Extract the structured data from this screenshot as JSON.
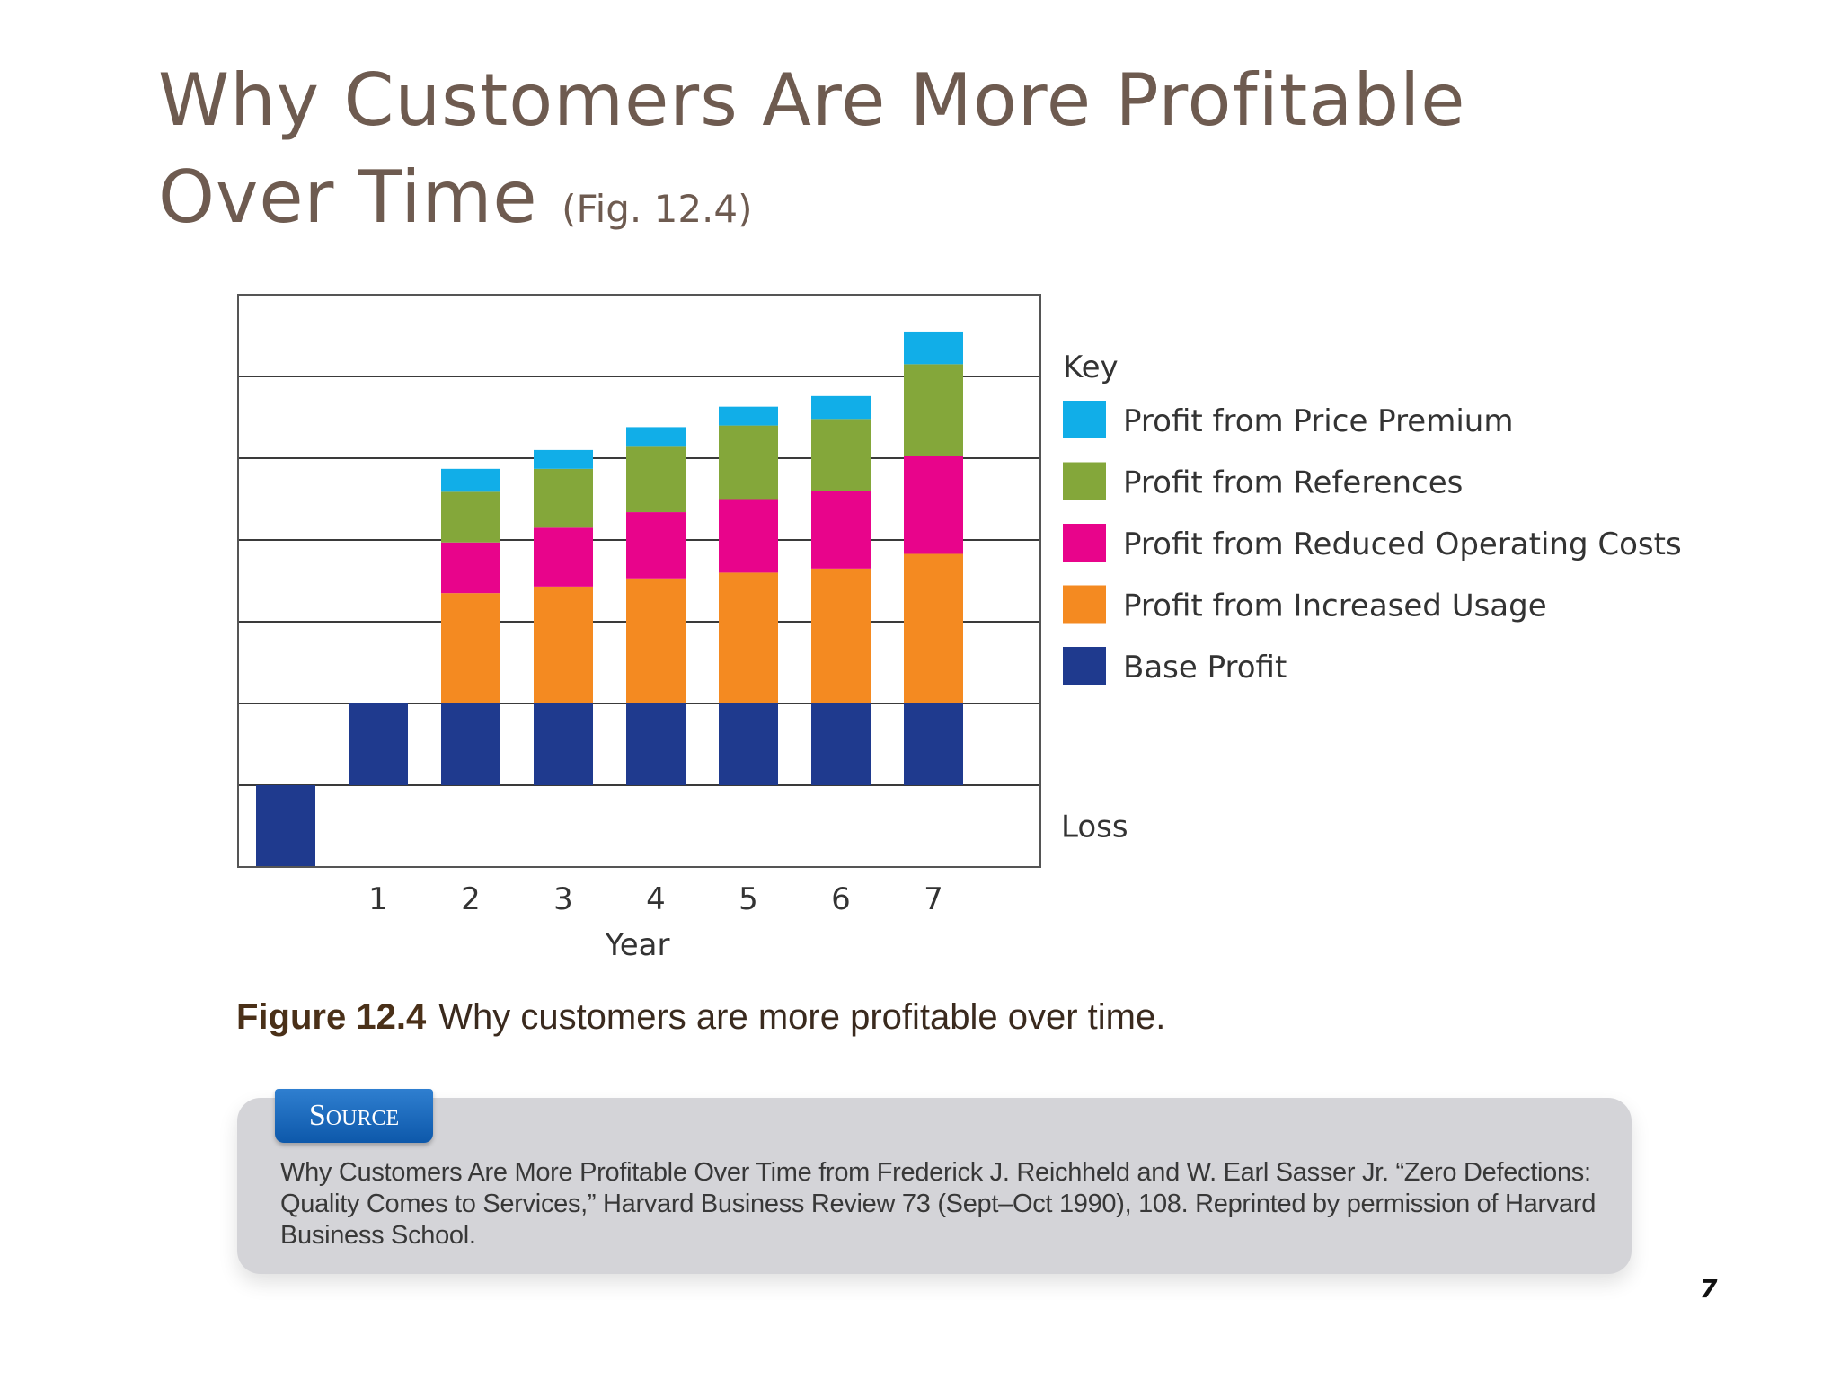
{
  "slide": {
    "title_line1": "Why Customers Are More Profitable",
    "title_line2": "Over Time",
    "title_ref": "(Fig. 12.4)",
    "page_number": "7"
  },
  "caption": {
    "label": "Figure 12.4",
    "text": "Why customers are more profitable over time."
  },
  "source": {
    "label": "Source",
    "text": "Why Customers Are More Profitable Over Time from Frederick J. Reichheld and W. Earl Sasser Jr. “Zero Defections: Quality Comes to Services,” Harvard Business Review 73 (Sept–Oct 1990), 108. Reprinted by permission of Harvard Business School."
  },
  "chart_data": {
    "type": "bar",
    "stacked": true,
    "categories": [
      "",
      "1",
      "2",
      "3",
      "4",
      "5",
      "6",
      "7"
    ],
    "xlabel": "Year",
    "ylabel": "",
    "ylim": [
      -1,
      6.0
    ],
    "grid": true,
    "legend_position": "right",
    "legend_title": "Key",
    "loss_label": "Loss",
    "series": [
      {
        "name": "Base Profit",
        "color": "#1f3a8e",
        "values": [
          -1,
          1,
          1,
          1,
          1,
          1,
          1,
          1
        ]
      },
      {
        "name": "Profit from Increased Usage",
        "color": "#f48a21",
        "values": [
          0,
          0,
          1.35,
          1.43,
          1.53,
          1.6,
          1.65,
          1.83
        ]
      },
      {
        "name": "Profit from Reduced Operating Costs",
        "color": "#e8048b",
        "values": [
          0,
          0,
          0.62,
          0.72,
          0.81,
          0.9,
          0.95,
          1.2
        ]
      },
      {
        "name": "Profit from References",
        "color": "#84a73a",
        "values": [
          0,
          0,
          0.62,
          0.72,
          0.81,
          0.9,
          0.88,
          1.12
        ]
      },
      {
        "name": "Profit from Price Premium",
        "color": "#11aee8",
        "values": [
          0,
          0,
          0.28,
          0.23,
          0.23,
          0.23,
          0.28,
          0.4
        ]
      }
    ],
    "legend_order": [
      "Profit from Price Premium",
      "Profit from References",
      "Profit from Reduced Operating Costs",
      "Profit from Increased Usage",
      "Base Profit"
    ]
  }
}
